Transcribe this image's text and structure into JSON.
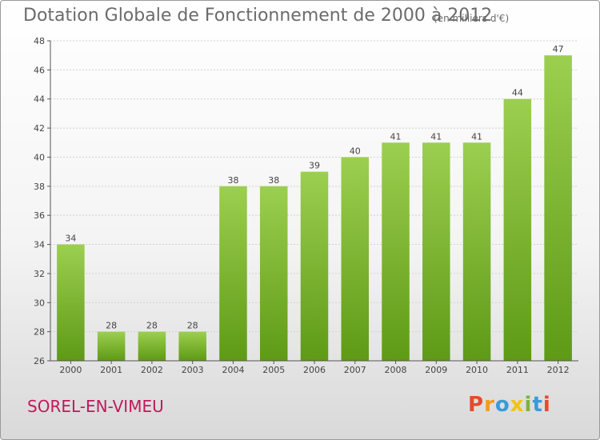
{
  "header": {
    "title": "Dotation Globale de Fonctionnement de 2000 à 2012",
    "subtitle": "(en milliers d'€)"
  },
  "footer": {
    "commune": "SOREL-EN-VIMEU",
    "logo": {
      "letters": [
        "P",
        "r",
        "o",
        "x",
        "i",
        "t",
        "i"
      ],
      "colors": [
        "#e8492c",
        "#f39c12",
        "#3a9ad9",
        "#f1c40f",
        "#7cb342",
        "#3a9ad9",
        "#e8492c"
      ]
    }
  },
  "chart_data": {
    "type": "bar",
    "categories": [
      "2000",
      "2001",
      "2002",
      "2003",
      "2004",
      "2005",
      "2006",
      "2007",
      "2008",
      "2009",
      "2010",
      "2011",
      "2012"
    ],
    "values": [
      34,
      28,
      28,
      28,
      38,
      38,
      39,
      40,
      41,
      41,
      41,
      44,
      47
    ],
    "data_labels": [
      "34",
      "28",
      "28",
      "28",
      "38",
      "38",
      "39",
      "40",
      "41",
      "41",
      "41",
      "44",
      "47"
    ],
    "ylim": [
      26,
      48
    ],
    "yticks": [
      26,
      28,
      30,
      32,
      34,
      36,
      38,
      40,
      42,
      44,
      46,
      48
    ],
    "grid": true,
    "colors": {
      "bar_top": "#9ccf4f",
      "bar_bottom": "#5e9a16",
      "grid": "#d0d0d0",
      "axis": "#555555",
      "text": "#444444"
    }
  }
}
